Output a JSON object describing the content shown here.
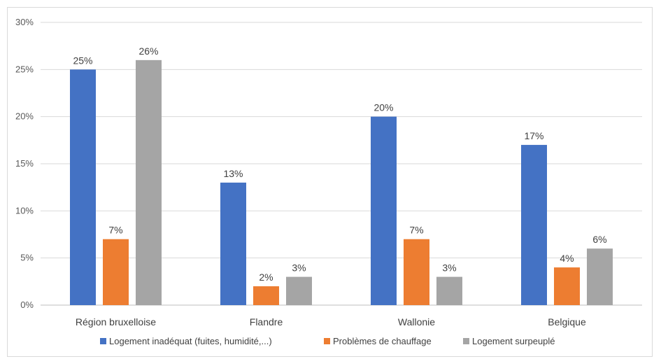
{
  "chart_data": {
    "type": "bar",
    "categories": [
      "Région bruxelloise",
      "Flandre",
      "Wallonie",
      "Belgique"
    ],
    "series": [
      {
        "name": "Logement inadéquat (fuites, humidité,...)",
        "values": [
          25,
          13,
          20,
          17
        ],
        "labels": [
          "25%",
          "13%",
          "20%",
          "17%"
        ],
        "color": "#4472c4"
      },
      {
        "name": "Problèmes de chauffage",
        "values": [
          7,
          2,
          7,
          4
        ],
        "labels": [
          "7%",
          "2%",
          "7%",
          "4%"
        ],
        "color": "#ed7d31"
      },
      {
        "name": "Logement surpeuplé",
        "values": [
          26,
          3,
          3,
          6
        ],
        "labels": [
          "26%",
          "3%",
          "3%",
          "6%"
        ],
        "color": "#a5a5a5"
      }
    ],
    "ylim": [
      0,
      30
    ],
    "yticks": [
      0,
      5,
      10,
      15,
      20,
      25,
      30
    ],
    "ytick_labels": [
      "0%",
      "5%",
      "10%",
      "15%",
      "20%",
      "25%",
      "30%"
    ],
    "grid": true,
    "legend_position": "bottom",
    "title": "",
    "xlabel": "",
    "ylabel": ""
  }
}
